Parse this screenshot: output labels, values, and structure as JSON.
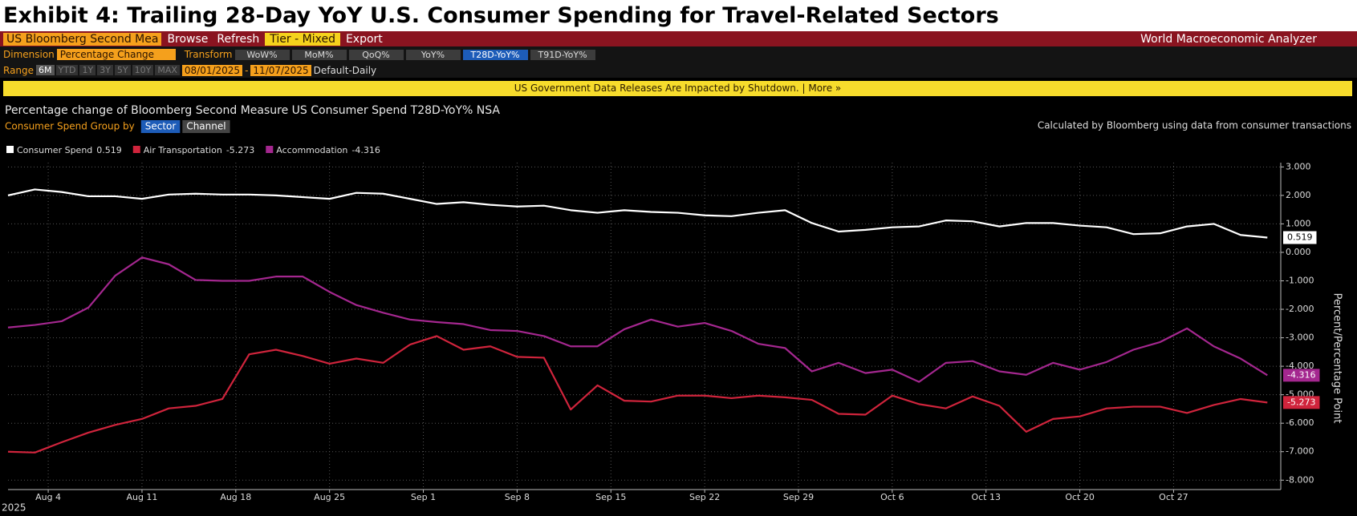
{
  "exhibit_title": "Exhibit 4: Trailing 28-Day YoY U.S. Consumer Spending for Travel-Related Sectors",
  "toolbar": {
    "security": "US Bloomberg Second Mea",
    "buttons": [
      "Browse",
      "Refresh"
    ],
    "tier": "Tier - Mixed",
    "export": "Export",
    "app_name": "World Macroeconomic Analyzer"
  },
  "dimension_row": {
    "dimension_label": "Dimension",
    "dimension": "Percentage Change",
    "transform_label": "Transform",
    "transforms": [
      "WoW%",
      "MoM%",
      "QoQ%",
      "YoY%",
      "T28D-YoY%",
      "T91D-YoY%"
    ]
  },
  "range_row": {
    "range_label": "Range",
    "ranges": [
      "6M",
      "YTD",
      "1Y",
      "3Y",
      "5Y",
      "10Y",
      "MAX"
    ],
    "start": "08/01/2025",
    "separator": "-",
    "end": "11/07/2025",
    "frequency": "Default-Daily"
  },
  "banner": "US Government Data Releases Are Impacted by Shutdown. | More »",
  "chart_data": {
    "type": "line",
    "title": "Percentage change of Bloomberg Second Measure US Consumer Spend T28D-YoY% NSA",
    "group_by_label": "Consumer Spend Group by",
    "group_options": [
      "Sector",
      "Channel"
    ],
    "note": "Calculated by Bloomberg using data from consumer transactions",
    "y_axis_label": "Percent/Percentage Point",
    "x_year_label": "2025",
    "x": [
      "2025-08-01",
      "2025-08-03",
      "2025-08-05",
      "2025-08-07",
      "2025-08-09",
      "2025-08-11",
      "2025-08-13",
      "2025-08-15",
      "2025-08-17",
      "2025-08-19",
      "2025-08-21",
      "2025-08-23",
      "2025-08-25",
      "2025-08-27",
      "2025-08-29",
      "2025-08-31",
      "2025-09-02",
      "2025-09-04",
      "2025-09-06",
      "2025-09-08",
      "2025-09-10",
      "2025-09-12",
      "2025-09-14",
      "2025-09-16",
      "2025-09-18",
      "2025-09-20",
      "2025-09-22",
      "2025-09-24",
      "2025-09-26",
      "2025-09-28",
      "2025-09-30",
      "2025-10-02",
      "2025-10-04",
      "2025-10-06",
      "2025-10-08",
      "2025-10-10",
      "2025-10-12",
      "2025-10-14",
      "2025-10-16",
      "2025-10-18",
      "2025-10-20",
      "2025-10-22",
      "2025-10-24",
      "2025-10-26",
      "2025-10-28",
      "2025-10-30",
      "2025-11-01",
      "2025-11-03"
    ],
    "series": [
      {
        "name": "Consumer Spend",
        "color": "#ffffff",
        "label_text_color": "#000000",
        "values": [
          2.0,
          2.21,
          2.12,
          1.97,
          1.97,
          1.88,
          2.03,
          2.06,
          2.03,
          2.03,
          2.0,
          1.94,
          1.88,
          2.09,
          2.06,
          1.88,
          1.7,
          1.76,
          1.67,
          1.61,
          1.64,
          1.48,
          1.39,
          1.48,
          1.42,
          1.39,
          1.3,
          1.27,
          1.39,
          1.48,
          1.03,
          0.73,
          0.79,
          0.88,
          0.91,
          1.12,
          1.09,
          0.91,
          1.03,
          1.03,
          0.94,
          0.88,
          0.64,
          0.67,
          0.91,
          1.0,
          0.61,
          0.519
        ]
      },
      {
        "name": "Air Transportation",
        "color": "#d0243c",
        "label_text_color": "#ffffff",
        "values": [
          -7.0,
          -7.03,
          -6.67,
          -6.33,
          -6.06,
          -5.85,
          -5.48,
          -5.39,
          -5.15,
          -3.58,
          -3.42,
          -3.64,
          -3.91,
          -3.73,
          -3.88,
          -3.24,
          -2.94,
          -3.42,
          -3.3,
          -3.67,
          -3.7,
          -5.52,
          -4.67,
          -5.21,
          -5.24,
          -5.03,
          -5.03,
          -5.12,
          -5.03,
          -5.09,
          -5.18,
          -5.67,
          -5.7,
          -5.03,
          -5.33,
          -5.48,
          -5.06,
          -5.39,
          -6.3,
          -5.85,
          -5.76,
          -5.48,
          -5.42,
          -5.42,
          -5.64,
          -5.36,
          -5.15,
          -5.273
        ]
      },
      {
        "name": "Accommodation",
        "color": "#a4278f",
        "label_text_color": "#ffffff",
        "values": [
          -2.64,
          -2.55,
          -2.42,
          -1.94,
          -0.82,
          -0.18,
          -0.42,
          -0.97,
          -1.0,
          -1.0,
          -0.85,
          -0.85,
          -1.39,
          -1.85,
          -2.12,
          -2.36,
          -2.45,
          -2.52,
          -2.73,
          -2.76,
          -2.94,
          -3.3,
          -3.3,
          -2.7,
          -2.36,
          -2.61,
          -2.48,
          -2.76,
          -3.21,
          -3.36,
          -4.18,
          -3.88,
          -4.24,
          -4.12,
          -4.55,
          -3.88,
          -3.82,
          -4.18,
          -4.3,
          -3.88,
          -4.12,
          -3.85,
          -3.42,
          -3.15,
          -2.67,
          -3.3,
          -3.73,
          -4.316
        ]
      }
    ],
    "xlim": [
      "2025-08-01",
      "2025-11-04"
    ],
    "xticks": [
      {
        "value": "2025-08-04",
        "label": "Aug 4"
      },
      {
        "value": "2025-08-11",
        "label": "Aug 11"
      },
      {
        "value": "2025-08-18",
        "label": "Aug 18"
      },
      {
        "value": "2025-08-25",
        "label": "Aug 25"
      },
      {
        "value": "2025-09-01",
        "label": "Sep 1"
      },
      {
        "value": "2025-09-08",
        "label": "Sep 8"
      },
      {
        "value": "2025-09-15",
        "label": "Sep 15"
      },
      {
        "value": "2025-09-22",
        "label": "Sep 22"
      },
      {
        "value": "2025-09-29",
        "label": "Sep 29"
      },
      {
        "value": "2025-10-06",
        "label": "Oct 6"
      },
      {
        "value": "2025-10-13",
        "label": "Oct 13"
      },
      {
        "value": "2025-10-20",
        "label": "Oct 20"
      },
      {
        "value": "2025-10-27",
        "label": "Oct 27"
      }
    ],
    "ylim": [
      -8.33,
      3.15
    ],
    "yticks": [
      {
        "value": 3,
        "label": "3.000"
      },
      {
        "value": 2,
        "label": "2.000"
      },
      {
        "value": 1,
        "label": "1.000"
      },
      {
        "value": 0,
        "label": "0.000"
      },
      {
        "value": -1,
        "label": "-1.000"
      },
      {
        "value": -2,
        "label": "-2.000"
      },
      {
        "value": -3,
        "label": "-3.000"
      },
      {
        "value": -4,
        "label": "-4.000"
      },
      {
        "value": -5,
        "label": "-5.000"
      },
      {
        "value": -6,
        "label": "-6.000"
      },
      {
        "value": -7,
        "label": "-7.000"
      },
      {
        "value": -8,
        "label": "-8.000"
      }
    ],
    "grid": true,
    "legend": "top-left",
    "axis_side": "right"
  }
}
